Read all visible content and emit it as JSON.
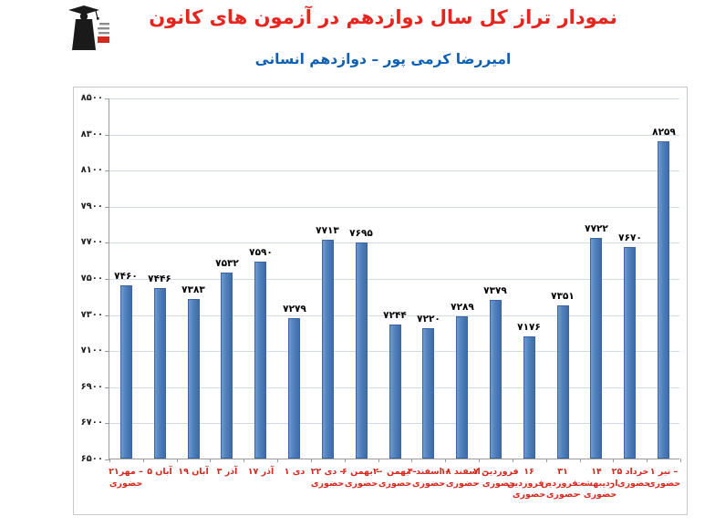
{
  "header": {
    "title": "نمودار تراز کل سال دوازدهم در آزمون های کانون",
    "subtitle": "امیررضا کرمی پور – دوازدهم انسانی",
    "logo_name": "kanoon-graduate-logo"
  },
  "colors": {
    "title": "#e8241e",
    "subtitle": "#0d5fb4",
    "bar": "#4f81bd",
    "x_label": "#d5281e",
    "value_label": "#000000",
    "y_label": "#1f1f1f",
    "gridline": "#d4dae4",
    "axis": "#9b9b9b",
    "frame_border": "#c8c8c8"
  },
  "chart_data": {
    "type": "bar",
    "title": "نمودار تراز کل سال دوازدهم در آزمون های کانون",
    "xlabel": "",
    "ylabel": "",
    "ylim": [
      6500,
      8500
    ],
    "y_tick_step": 200,
    "grid": "horizontal",
    "legend_position": "none",
    "y_ticks": [
      {
        "value": 8500,
        "label": "۸۵۰۰"
      },
      {
        "value": 8300,
        "label": "۸۳۰۰"
      },
      {
        "value": 8100,
        "label": "۸۱۰۰"
      },
      {
        "value": 7900,
        "label": "۷۹۰۰"
      },
      {
        "value": 7700,
        "label": "۷۷۰۰"
      },
      {
        "value": 7500,
        "label": "۷۵۰۰"
      },
      {
        "value": 7300,
        "label": "۷۳۰۰"
      },
      {
        "value": 7100,
        "label": "۷۱۰۰"
      },
      {
        "value": 6900,
        "label": "۶۹۰۰"
      },
      {
        "value": 6700,
        "label": "۶۷۰۰"
      },
      {
        "value": 6500,
        "label": "۶۵۰۰"
      }
    ],
    "points": [
      {
        "category": "۲۱مهر – حضوری",
        "category_lines": [
          "۲۱مهر –",
          "حضوری"
        ],
        "value": 7460,
        "value_label": "۷۴۶۰"
      },
      {
        "category": "۵ آبان",
        "category_lines": [
          "۵ آبان"
        ],
        "value": 7446,
        "value_label": "۷۴۴۶"
      },
      {
        "category": "۱۹ آبان",
        "category_lines": [
          "۱۹ آبان"
        ],
        "value": 7383,
        "value_label": "۷۳۸۳"
      },
      {
        "category": "۳ آذر",
        "category_lines": [
          "۳ آذر"
        ],
        "value": 7532,
        "value_label": "۷۵۳۲"
      },
      {
        "category": "۱۷ آذر",
        "category_lines": [
          "۱۷ آذر"
        ],
        "value": 7590,
        "value_label": "۷۵۹۰"
      },
      {
        "category": "۱ دی",
        "category_lines": [
          "۱ دی"
        ],
        "value": 7279,
        "value_label": "۷۲۷۹"
      },
      {
        "category": "۲۲ دی – حضوری",
        "category_lines": [
          "۲۲ دی –",
          "حضوری"
        ],
        "value": 7713,
        "value_label": "۷۷۱۳"
      },
      {
        "category": "۶ بهمن – حضوری",
        "category_lines": [
          "۶ بهمن –",
          "حضوری"
        ],
        "value": 7695,
        "value_label": "۷۶۹۵"
      },
      {
        "category": "۲۰ بهمن – حضوری",
        "category_lines": [
          "۲۰ بهمن –",
          "حضوری"
        ],
        "value": 7244,
        "value_label": "۷۲۴۴"
      },
      {
        "category": "۴ اسفند – حضوری",
        "category_lines": [
          "۴ اسفند –",
          "حضوری"
        ],
        "value": 7220,
        "value_label": "۷۲۲۰"
      },
      {
        "category": "۱۸ اسفند – حضوری",
        "category_lines": [
          "۱۸ اسفند –",
          "حضوری"
        ],
        "value": 7289,
        "value_label": "۷۲۸۹"
      },
      {
        "category": "۷ فروردین – حضوری",
        "category_lines": [
          "۷ فروردین",
          "– حضوری"
        ],
        "value": 7379,
        "value_label": "۷۳۷۹"
      },
      {
        "category": "۱۶ فروردین – حضوری",
        "category_lines": [
          "۱۶",
          "فروردین –",
          "حضوری"
        ],
        "value": 7176,
        "value_label": "۷۱۷۶"
      },
      {
        "category": "۳۱ فروردین – حضوری",
        "category_lines": [
          "۳۱",
          "فروردین –",
          "حضوری"
        ],
        "value": 7351,
        "value_label": "۷۳۵۱"
      },
      {
        "category": "۱۴ اردیبهشت – حضوری",
        "category_lines": [
          "۱۴",
          "اردیبهشت",
          "– حضوری"
        ],
        "value": 7722,
        "value_label": "۷۷۲۲"
      },
      {
        "category": "۲۵ خرداد – حضوری",
        "category_lines": [
          "۲۵ خرداد",
          "– حضوری"
        ],
        "value": 7670,
        "value_label": "۷۶۷۰"
      },
      {
        "category": "۱ تیر – حضوری",
        "category_lines": [
          "۱ تیر –",
          "حضوری"
        ],
        "value": 8259,
        "value_label": "۸۲۵۹"
      }
    ]
  }
}
